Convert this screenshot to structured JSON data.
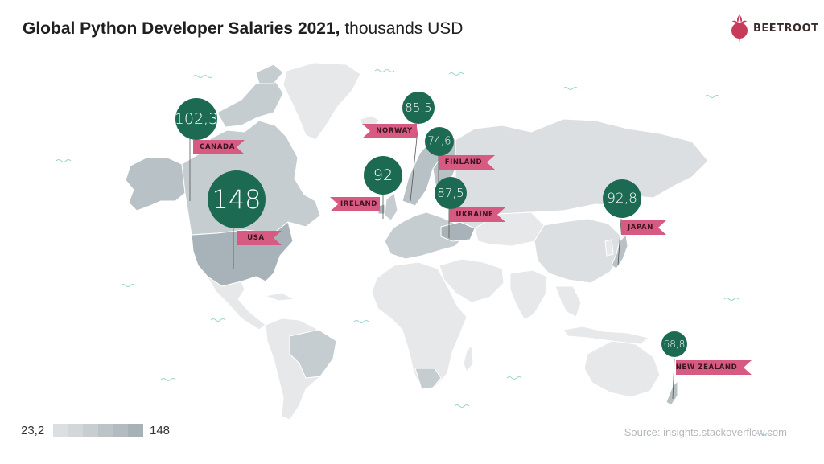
{
  "header": {
    "title_bold": "Global Python Developer Salaries 2021,",
    "title_light": " thousands USD"
  },
  "logo": {
    "text": "BEETROOT",
    "icon": "beetroot-icon"
  },
  "legend": {
    "min": "23,2",
    "max": "148",
    "colors": [
      "#dcdfe1",
      "#d2d7da",
      "#c7cdd1",
      "#bcc4c8",
      "#b2bbc0",
      "#a7b2b8"
    ]
  },
  "source": "Source: insights.stackoverflow.com",
  "colors": {
    "bubble": "#1d6a52",
    "flag": "#d65a82",
    "land_light": "#e6e8e9",
    "land_mid": "#c9cfd2",
    "land_dark": "#a8b3b9",
    "border": "#ffffff",
    "wave": "#9bd3cf"
  },
  "markers": [
    {
      "country": "CANADA",
      "value": "102,3"
    },
    {
      "country": "USA",
      "value": "148"
    },
    {
      "country": "IRELAND",
      "value": "92"
    },
    {
      "country": "NORWAY",
      "value": "85,5"
    },
    {
      "country": "FINLAND",
      "value": "74,6"
    },
    {
      "country": "UKRAINE",
      "value": "87,5"
    },
    {
      "country": "JAPAN",
      "value": "92,8"
    },
    {
      "country": "NEW ZEALAND",
      "value": "68,8"
    }
  ]
}
